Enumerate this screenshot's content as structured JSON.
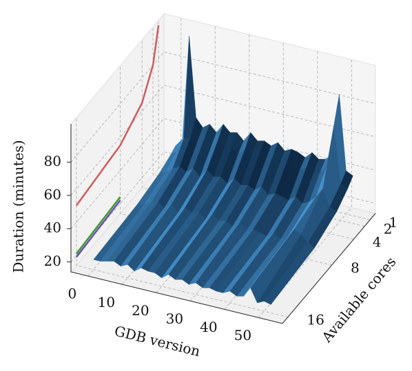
{
  "chart_data": {
    "type": "surface3d",
    "xlabel": "GDB version",
    "ylabel": "Available cores",
    "zlabel": "Duration (minutes)",
    "x": [
      0,
      2,
      4,
      6,
      8,
      10,
      12,
      14,
      16,
      18,
      20,
      22,
      24,
      26,
      28,
      30,
      32,
      34,
      36,
      38,
      40,
      42,
      44,
      46,
      48,
      50,
      52
    ],
    "cores": [
      1,
      2,
      4,
      8,
      16
    ],
    "surface": [
      [
        30,
        35,
        98,
        50,
        45,
        48,
        44,
        50,
        46,
        47,
        43,
        49,
        45,
        46,
        44,
        47,
        43,
        45,
        44,
        42,
        46,
        43,
        44,
        48,
        85,
        40,
        38
      ],
      [
        28,
        32,
        40,
        42,
        40,
        43,
        39,
        44,
        41,
        42,
        39,
        43,
        40,
        41,
        39,
        42,
        38,
        40,
        39,
        38,
        41,
        38,
        40,
        45,
        70,
        36,
        34
      ],
      [
        25,
        27,
        30,
        32,
        30,
        33,
        29,
        34,
        31,
        32,
        29,
        33,
        30,
        31,
        29,
        32,
        28,
        30,
        29,
        28,
        31,
        28,
        30,
        34,
        40,
        30,
        28
      ],
      [
        22,
        23,
        25,
        26,
        24,
        27,
        23,
        27,
        25,
        26,
        23,
        27,
        24,
        25,
        23,
        26,
        22,
        24,
        23,
        22,
        25,
        22,
        24,
        30,
        28,
        24,
        22
      ],
      [
        20,
        20,
        21,
        22,
        20,
        22,
        19,
        22,
        21,
        21,
        19,
        22,
        20,
        21,
        19,
        21,
        19,
        20,
        19,
        19,
        21,
        19,
        20,
        26,
        18,
        20,
        19
      ]
    ],
    "surface_colors": [
      "#0b2540",
      "#4a9ad8"
    ],
    "wall_lines": [
      {
        "color": "#cd5c5c",
        "values": [
          100,
          80,
          65,
          55,
          50
        ]
      },
      {
        "color": "#3a9a2a",
        "values": [
          null,
          null,
          null,
          24,
          21
        ]
      },
      {
        "color": "#6a4ab0",
        "values": [
          null,
          null,
          null,
          22,
          19
        ]
      }
    ],
    "xlim": [
      -5,
      57
    ],
    "xticks": [
      0,
      10,
      20,
      30,
      40,
      50
    ],
    "ylim": [
      0,
      17
    ],
    "yticks": [
      1,
      2,
      4,
      8,
      16
    ],
    "zlim": [
      14,
      103
    ],
    "zticks": [
      20,
      40,
      60,
      80
    ],
    "grid": true
  }
}
